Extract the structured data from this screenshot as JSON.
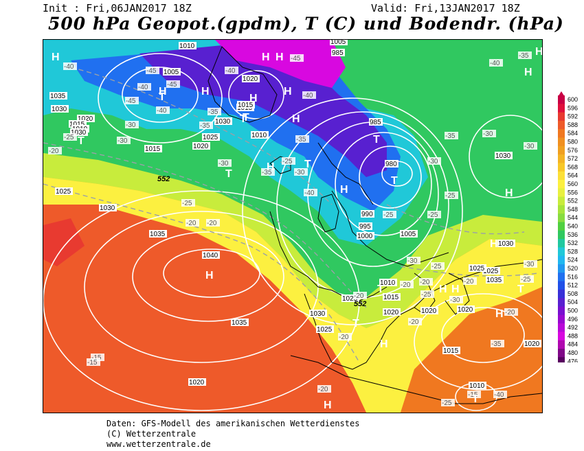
{
  "header": {
    "init": "Init : Fri,06JAN2017 18Z",
    "valid": "Valid: Fri,13JAN2017 18Z",
    "title": "500 hPa Geopot.(gpdm), T (C) und Bodendr. (hPa)"
  },
  "footer": {
    "line1": "Daten: GFS-Modell des amerikanischen Wetterdienstes",
    "line2": "(C) Wetterzentrale",
    "line3": "www.wetterzentrale.de"
  },
  "legend": {
    "values": [
      "600",
      "596",
      "592",
      "588",
      "584",
      "580",
      "576",
      "572",
      "568",
      "564",
      "560",
      "556",
      "552",
      "548",
      "544",
      "540",
      "536",
      "532",
      "528",
      "524",
      "520",
      "516",
      "512",
      "508",
      "504",
      "500",
      "496",
      "492",
      "488",
      "484",
      "480",
      "476"
    ],
    "colors": [
      "#c80044",
      "#e0103c",
      "#e83a30",
      "#ee5a2a",
      "#f07820",
      "#f09020",
      "#f0a020",
      "#f4b424",
      "#f8c828",
      "#fce038",
      "#fcf040",
      "#e8f040",
      "#c8ec3c",
      "#a8e43c",
      "#88dc40",
      "#50d040",
      "#30c860",
      "#20c8a0",
      "#20c8d8",
      "#20b8f0",
      "#2098f0",
      "#2070f0",
      "#2050e8",
      "#3830d8",
      "#5820d0",
      "#7810d0",
      "#9808d0",
      "#b808d8",
      "#d808e0",
      "#b008b0",
      "#800888",
      "#580060"
    ]
  },
  "map": {
    "pressure_labels": [
      "1010",
      "1005",
      "1020",
      "1015",
      "1035",
      "1030",
      "1020",
      "1015",
      "1010",
      "1015",
      "1025",
      "1030",
      "1020",
      "1025",
      "1030",
      "1035",
      "1040",
      "1035",
      "1020",
      "1025",
      "1030",
      "1025",
      "1020",
      "1015",
      "1010",
      "1005",
      "1000",
      "995",
      "990",
      "985",
      "980",
      "990",
      "985",
      "1030",
      "1030",
      "1005",
      "1010",
      "1015",
      "1020",
      "1025",
      "1020",
      "1015",
      "1010",
      "1030",
      "1025",
      "1020",
      "1035"
    ],
    "temp_labels": [
      "-40",
      "-45",
      "-45",
      "-40",
      "-35",
      "-30",
      "-25",
      "-20",
      "-40",
      "-45",
      "-40",
      "-35",
      "-30",
      "-45",
      "-40",
      "-35",
      "-30",
      "-25",
      "-20",
      "-20",
      "-25",
      "-30",
      "-35",
      "-40",
      "-30",
      "-35",
      "-25",
      "-30",
      "-25",
      "-20",
      "-25",
      "-30",
      "-20",
      "-20",
      "-25",
      "-20",
      "-20",
      "-15",
      "-15",
      "-20",
      "-25",
      "-15",
      "-40",
      "-20",
      "-25",
      "-30",
      "-35",
      "-40",
      "-30",
      "-30",
      "-25",
      "-20",
      "-35"
    ],
    "high_symbol": "H",
    "low_symbol": "T",
    "isohypse_labels": [
      "552",
      "552"
    ]
  }
}
